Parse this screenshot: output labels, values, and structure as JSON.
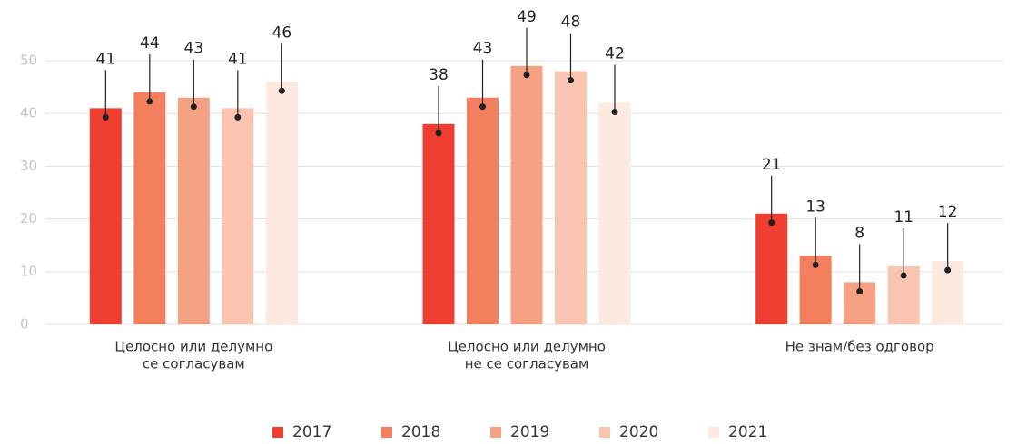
{
  "chart_data": {
    "type": "bar",
    "categories": [
      [
        "Целосно или делумно",
        "се согласувам"
      ],
      [
        "Целосно или делумно",
        "не се согласувам"
      ],
      [
        "Не знам/без одговор"
      ]
    ],
    "series": [
      {
        "name": "2017",
        "color": "#ef3e2f",
        "values": [
          41,
          38,
          21
        ]
      },
      {
        "name": "2018",
        "color": "#f37f5f",
        "values": [
          44,
          43,
          13
        ]
      },
      {
        "name": "2019",
        "color": "#f6a184",
        "values": [
          43,
          49,
          8
        ]
      },
      {
        "name": "2020",
        "color": "#f9c5b0",
        "values": [
          41,
          48,
          11
        ]
      },
      {
        "name": "2021",
        "color": "#fce9df",
        "values": [
          46,
          42,
          12
        ]
      }
    ],
    "ylim": [
      0,
      50
    ],
    "yticks": [
      0,
      10,
      20,
      30,
      40,
      50
    ],
    "grid": true,
    "legend": "bottom"
  }
}
